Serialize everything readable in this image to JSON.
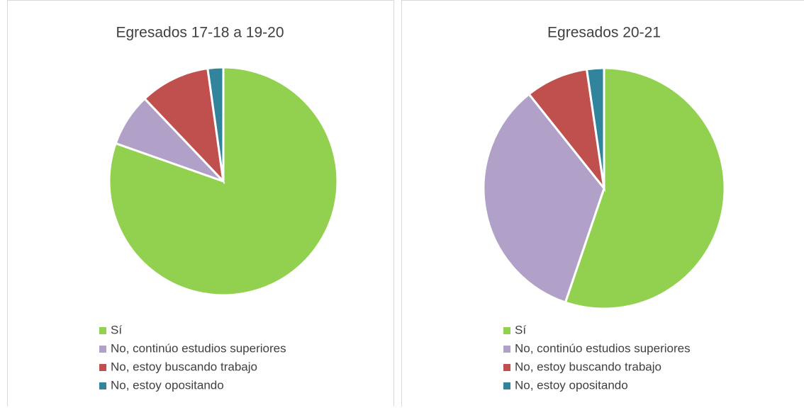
{
  "chart_data": [
    {
      "type": "pie",
      "title": "Egresados 17-18 a 19-20",
      "categories": [
        "Sí",
        "No, continúo estudios superiores",
        "No, estoy buscando trabajo",
        "No, estoy opositando"
      ],
      "values": [
        80.4,
        7.5,
        9.9,
        2.2
      ],
      "colors": [
        "#92d050",
        "#b1a0c7",
        "#c0504d",
        "#31849b"
      ]
    },
    {
      "type": "pie",
      "title": "Egresados 20-21",
      "categories": [
        "Sí",
        "No, continúo estudios superiores",
        "No, estoy buscando trabajo",
        "No, estoy opositando"
      ],
      "values": [
        55.2,
        34.1,
        8.4,
        2.3
      ],
      "colors": [
        "#92d050",
        "#b1a0c7",
        "#c0504d",
        "#31849b"
      ]
    }
  ]
}
